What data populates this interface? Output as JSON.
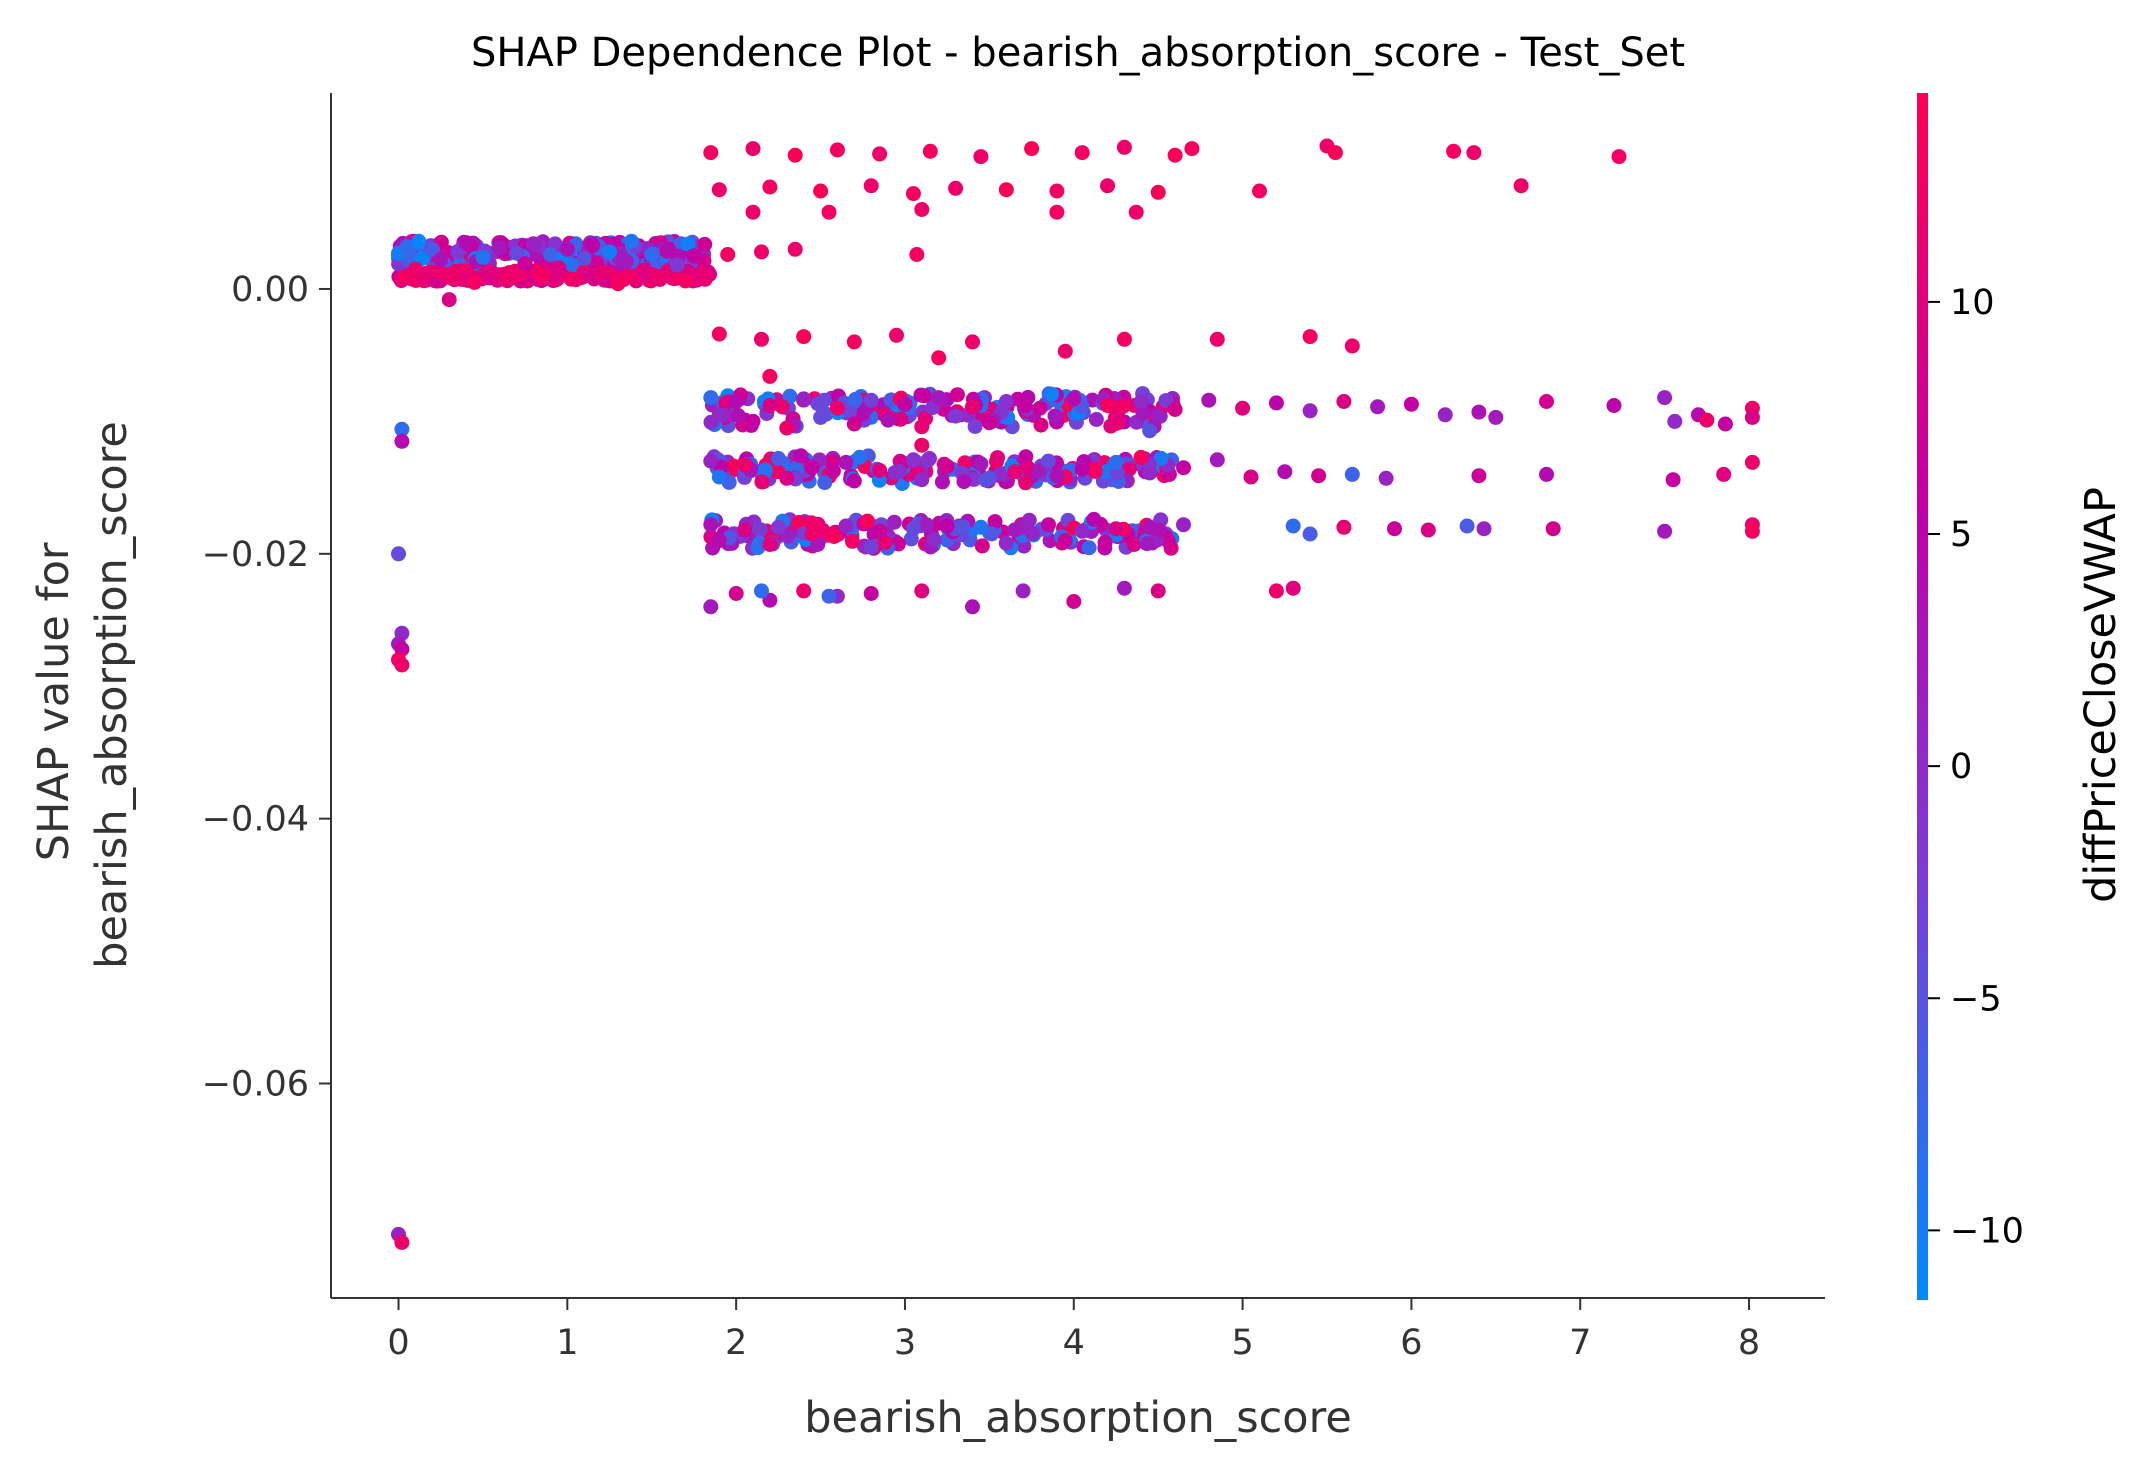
{
  "chart_data": {
    "type": "scatter",
    "title": "SHAP Dependence Plot - bearish_absorption_score - Test_Set",
    "xlabel": "bearish_absorption_score",
    "ylabel": [
      "SHAP value for",
      "bearish_absorption_score"
    ],
    "xlim": [
      -0.4,
      8.45
    ],
    "ylim": [
      -0.0762,
      0.0148
    ],
    "xticks": [
      0,
      1,
      2,
      3,
      4,
      5,
      6,
      7,
      8
    ],
    "xtick_labels": [
      "0",
      "1",
      "2",
      "3",
      "4",
      "5",
      "6",
      "7",
      "8"
    ],
    "yticks": [
      0.0,
      -0.02,
      -0.04,
      -0.06
    ],
    "ytick_labels": [
      "0.00",
      "−0.02",
      "−0.04",
      "−0.06"
    ],
    "grid": false,
    "legend": "none",
    "colorbar": {
      "label": "diffPriceCloseVWAP",
      "range": [
        -11.5,
        14.5
      ],
      "ticks": [
        10,
        5,
        0,
        -5,
        -10
      ],
      "tick_labels": [
        "10",
        "5",
        "0",
        "−5",
        "−10"
      ],
      "colormap": [
        "#008afb",
        "#7b3cd6",
        "#c000a8",
        "#ff0052"
      ]
    },
    "point_color_low": "#008afb",
    "point_color_high": "#ff0052",
    "points": [
      [
        0,
        0.0027,
        -10
      ],
      [
        0.05,
        0.0032,
        -8
      ],
      [
        0.1,
        0.0015,
        12
      ],
      [
        0.15,
        0.0009,
        11
      ],
      [
        0.2,
        0.003,
        -6
      ],
      [
        0.25,
        0.0022,
        3
      ],
      [
        0.3,
        0.0011,
        12
      ],
      [
        0.35,
        0.0028,
        -2
      ],
      [
        0.4,
        0.0035,
        4
      ],
      [
        0.45,
        0.0005,
        13
      ],
      [
        0.5,
        0.0024,
        -9
      ],
      [
        0.55,
        0.0013,
        10
      ],
      [
        0.6,
        0.0031,
        2
      ],
      [
        0.65,
        0.0008,
        12
      ],
      [
        0.7,
        0.0027,
        -4
      ],
      [
        0.75,
        0.0019,
        7
      ],
      [
        0.8,
        0.0034,
        1
      ],
      [
        0.85,
        0.001,
        13
      ],
      [
        0.9,
        0.0026,
        -7
      ],
      [
        0.95,
        0.0016,
        9
      ],
      [
        1.0,
        0.003,
        3
      ],
      [
        1.05,
        0.0007,
        12
      ],
      [
        1.1,
        0.0023,
        -5
      ],
      [
        1.15,
        0.0033,
        5
      ],
      [
        1.2,
        0.0012,
        11
      ],
      [
        1.25,
        0.0028,
        -10
      ],
      [
        1.3,
        0.0004,
        13
      ],
      [
        1.35,
        0.0021,
        2
      ],
      [
        1.4,
        0.0032,
        -3
      ],
      [
        1.45,
        0.0014,
        10
      ],
      [
        1.5,
        0.0026,
        -8
      ],
      [
        1.55,
        0.0009,
        12
      ],
      [
        1.6,
        0.003,
        4
      ],
      [
        1.65,
        0.0018,
        -2
      ],
      [
        1.7,
        0.0006,
        13
      ],
      [
        1.75,
        0.0025,
        6
      ],
      [
        1.8,
        0.0012,
        11
      ],
      [
        0.3,
        -0.0008,
        9
      ],
      [
        0.12,
        0.0036,
        -11
      ],
      [
        1.38,
        0.0036,
        -9
      ],
      [
        0.02,
        -0.0106,
        -8
      ],
      [
        0.02,
        -0.0115,
        4
      ],
      [
        0.0,
        -0.02,
        -4
      ],
      [
        0.02,
        -0.026,
        0
      ],
      [
        0.0,
        -0.0268,
        2
      ],
      [
        0.02,
        -0.0272,
        6
      ],
      [
        0.0,
        -0.028,
        13
      ],
      [
        0.02,
        -0.0284,
        12
      ],
      [
        0.0,
        -0.0714,
        1
      ],
      [
        0.02,
        -0.072,
        12
      ],
      [
        1.85,
        0.0103,
        13
      ],
      [
        2.1,
        0.0106,
        12
      ],
      [
        2.35,
        0.0101,
        14
      ],
      [
        2.6,
        0.0105,
        13
      ],
      [
        2.85,
        0.0102,
        12
      ],
      [
        3.15,
        0.0104,
        13
      ],
      [
        3.45,
        0.01,
        12
      ],
      [
        3.75,
        0.0106,
        14
      ],
      [
        4.05,
        0.0103,
        13
      ],
      [
        4.3,
        0.0107,
        12
      ],
      [
        4.6,
        0.0101,
        14
      ],
      [
        4.7,
        0.0106,
        13
      ],
      [
        5.5,
        0.0108,
        12
      ],
      [
        5.55,
        0.0103,
        14
      ],
      [
        6.25,
        0.0104,
        13
      ],
      [
        6.37,
        0.0103,
        12
      ],
      [
        7.23,
        0.01,
        13
      ],
      [
        1.9,
        0.0075,
        12
      ],
      [
        2.2,
        0.0077,
        13
      ],
      [
        2.5,
        0.0074,
        14
      ],
      [
        2.8,
        0.0078,
        12
      ],
      [
        3.05,
        0.0072,
        13
      ],
      [
        3.3,
        0.0076,
        12
      ],
      [
        3.6,
        0.0075,
        14
      ],
      [
        3.9,
        0.0074,
        13
      ],
      [
        4.2,
        0.0078,
        12
      ],
      [
        4.5,
        0.0073,
        14
      ],
      [
        5.1,
        0.0074,
        13
      ],
      [
        6.65,
        0.0078,
        12
      ],
      [
        2.1,
        0.0058,
        12
      ],
      [
        2.55,
        0.0058,
        13
      ],
      [
        3.1,
        0.006,
        12
      ],
      [
        3.9,
        0.0058,
        13
      ],
      [
        4.37,
        0.0058,
        12
      ],
      [
        1.95,
        0.0026,
        13
      ],
      [
        2.15,
        0.0028,
        12
      ],
      [
        2.35,
        0.003,
        12
      ],
      [
        3.07,
        0.0026,
        13
      ],
      [
        1.9,
        -0.0034,
        13
      ],
      [
        2.15,
        -0.0038,
        12
      ],
      [
        2.4,
        -0.0036,
        14
      ],
      [
        2.7,
        -0.004,
        13
      ],
      [
        2.95,
        -0.0035,
        12
      ],
      [
        3.2,
        -0.0052,
        13
      ],
      [
        3.4,
        -0.004,
        12
      ],
      [
        3.95,
        -0.0047,
        12
      ],
      [
        4.3,
        -0.0038,
        13
      ],
      [
        4.85,
        -0.0038,
        12
      ],
      [
        5.4,
        -0.0036,
        13
      ],
      [
        5.65,
        -0.0043,
        12
      ],
      [
        2.2,
        -0.0066,
        13
      ],
      [
        3.1,
        -0.0118,
        12
      ],
      [
        1.85,
        -0.0082,
        -8
      ],
      [
        2.0,
        -0.0085,
        4
      ],
      [
        2.2,
        -0.0088,
        9
      ],
      [
        2.4,
        -0.0083,
        1
      ],
      [
        2.6,
        -0.009,
        12
      ],
      [
        2.8,
        -0.0084,
        -3
      ],
      [
        3.0,
        -0.0087,
        6
      ],
      [
        3.2,
        -0.0082,
        2
      ],
      [
        3.4,
        -0.0089,
        11
      ],
      [
        3.6,
        -0.0085,
        -1
      ],
      [
        3.8,
        -0.009,
        7
      ],
      [
        4.0,
        -0.0083,
        4
      ],
      [
        4.2,
        -0.0088,
        13
      ],
      [
        4.4,
        -0.0085,
        0
      ],
      [
        4.6,
        -0.0091,
        8
      ],
      [
        4.8,
        -0.0084,
        3
      ],
      [
        5.0,
        -0.009,
        10
      ],
      [
        5.2,
        -0.0086,
        5
      ],
      [
        5.4,
        -0.0092,
        1
      ],
      [
        5.6,
        -0.0085,
        9
      ],
      [
        5.8,
        -0.0089,
        2
      ],
      [
        6.0,
        -0.0087,
        6
      ],
      [
        6.2,
        -0.0095,
        1
      ],
      [
        6.4,
        -0.0093,
        3
      ],
      [
        6.8,
        -0.0085,
        8
      ],
      [
        7.2,
        -0.0088,
        5
      ],
      [
        7.5,
        -0.0082,
        1
      ],
      [
        7.7,
        -0.0095,
        4
      ],
      [
        8.02,
        -0.009,
        12
      ],
      [
        6.5,
        -0.0097,
        2
      ],
      [
        7.75,
        -0.0099,
        12
      ],
      [
        7.86,
        -0.0102,
        6
      ],
      [
        8.02,
        -0.0097,
        9
      ],
      [
        7.56,
        -0.01,
        0
      ],
      [
        4.45,
        -0.0107,
        -5
      ],
      [
        1.9,
        -0.0095,
        0
      ],
      [
        2.1,
        -0.01,
        6
      ],
      [
        2.3,
        -0.0105,
        12
      ],
      [
        2.5,
        -0.0097,
        -4
      ],
      [
        2.7,
        -0.0102,
        8
      ],
      [
        2.9,
        -0.0099,
        3
      ],
      [
        3.1,
        -0.0104,
        11
      ],
      [
        3.3,
        -0.0096,
        -2
      ],
      [
        3.5,
        -0.0101,
        7
      ],
      [
        1.85,
        -0.013,
        1
      ],
      [
        2.05,
        -0.0133,
        12
      ],
      [
        2.25,
        -0.0128,
        -6
      ],
      [
        2.45,
        -0.0135,
        6
      ],
      [
        2.65,
        -0.0131,
        3
      ],
      [
        2.85,
        -0.0137,
        10
      ],
      [
        3.05,
        -0.0129,
        -1
      ],
      [
        3.25,
        -0.0134,
        8
      ],
      [
        3.45,
        -0.0132,
        2
      ],
      [
        3.65,
        -0.0138,
        11
      ],
      [
        3.85,
        -0.013,
        -4
      ],
      [
        4.05,
        -0.0136,
        5
      ],
      [
        4.25,
        -0.0131,
        -8
      ],
      [
        4.45,
        -0.0139,
        0
      ],
      [
        4.65,
        -0.0135,
        6
      ],
      [
        4.85,
        -0.0129,
        2
      ],
      [
        5.05,
        -0.0142,
        9
      ],
      [
        5.25,
        -0.0138,
        4
      ],
      [
        5.45,
        -0.0141,
        8
      ],
      [
        5.65,
        -0.014,
        -7
      ],
      [
        5.85,
        -0.0143,
        1
      ],
      [
        6.4,
        -0.0141,
        7
      ],
      [
        6.8,
        -0.014,
        4
      ],
      [
        7.55,
        -0.0144,
        6
      ],
      [
        7.85,
        -0.014,
        10
      ],
      [
        8.02,
        -0.0131,
        12
      ],
      [
        1.9,
        -0.0142,
        -9
      ],
      [
        2.3,
        -0.0143,
        9
      ],
      [
        2.7,
        -0.0145,
        5
      ],
      [
        3.1,
        -0.0144,
        0
      ],
      [
        3.5,
        -0.0143,
        -5
      ],
      [
        3.9,
        -0.0141,
        3
      ],
      [
        1.85,
        -0.0178,
        3
      ],
      [
        2.05,
        -0.0182,
        9
      ],
      [
        2.25,
        -0.018,
        -2
      ],
      [
        2.45,
        -0.0185,
        12
      ],
      [
        2.65,
        -0.0179,
        1
      ],
      [
        2.85,
        -0.0183,
        7
      ],
      [
        3.05,
        -0.0181,
        -4
      ],
      [
        3.25,
        -0.0179,
        5
      ],
      [
        3.45,
        -0.018,
        -9
      ],
      [
        3.65,
        -0.0182,
        2
      ],
      [
        3.85,
        -0.0178,
        6
      ],
      [
        4.05,
        -0.0183,
        0
      ],
      [
        4.25,
        -0.0181,
        9
      ],
      [
        4.45,
        -0.018,
        3
      ],
      [
        4.65,
        -0.0178,
        1
      ],
      [
        5.3,
        -0.0179,
        -8
      ],
      [
        5.4,
        -0.0185,
        -6
      ],
      [
        5.6,
        -0.018,
        11
      ],
      [
        5.9,
        -0.0181,
        7
      ],
      [
        6.1,
        -0.0182,
        9
      ],
      [
        6.33,
        -0.0179,
        -6
      ],
      [
        6.43,
        -0.0181,
        1
      ],
      [
        6.84,
        -0.0181,
        8
      ],
      [
        7.5,
        -0.0183,
        2
      ],
      [
        8.02,
        -0.0178,
        12
      ],
      [
        8.02,
        -0.0183,
        13
      ],
      [
        1.9,
        -0.019,
        4
      ],
      [
        2.2,
        -0.0193,
        10
      ],
      [
        2.8,
        -0.0195,
        -3
      ],
      [
        3.6,
        -0.0192,
        0
      ],
      [
        3.95,
        -0.019,
        7
      ],
      [
        1.85,
        -0.024,
        2
      ],
      [
        2.0,
        -0.023,
        8
      ],
      [
        2.2,
        -0.0235,
        4
      ],
      [
        2.4,
        -0.0228,
        12
      ],
      [
        2.6,
        -0.0232,
        0
      ],
      [
        2.8,
        -0.023,
        6
      ],
      [
        3.1,
        -0.0228,
        10
      ],
      [
        3.4,
        -0.024,
        3
      ],
      [
        3.7,
        -0.0228,
        1
      ],
      [
        4.0,
        -0.0236,
        8
      ],
      [
        4.3,
        -0.0226,
        2
      ],
      [
        4.5,
        -0.0228,
        9
      ],
      [
        5.2,
        -0.0228,
        12
      ],
      [
        5.3,
        -0.0226,
        10
      ],
      [
        2.15,
        -0.0228,
        -8
      ],
      [
        2.55,
        -0.0232,
        -7
      ]
    ]
  }
}
